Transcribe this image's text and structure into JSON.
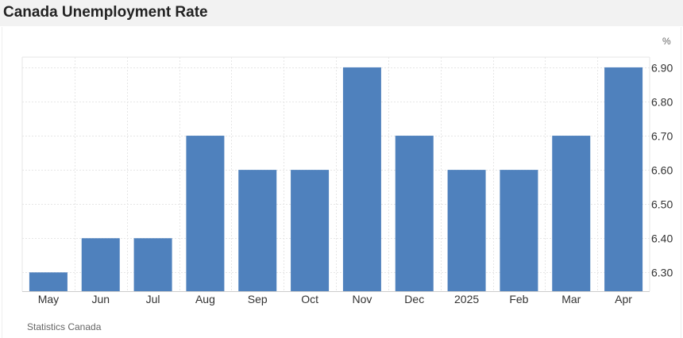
{
  "page": {
    "title": "Canada Unemployment Rate",
    "source": "Statistics Canada"
  },
  "chart_data": {
    "type": "bar",
    "title": "Canada Unemployment Rate",
    "unit": "%",
    "categories": [
      "May",
      "Jun",
      "Jul",
      "Aug",
      "Sep",
      "Oct",
      "Nov",
      "Dec",
      "2025",
      "Feb",
      "Mar",
      "Apr"
    ],
    "values": [
      6.3,
      6.4,
      6.4,
      6.7,
      6.6,
      6.6,
      6.9,
      6.7,
      6.6,
      6.6,
      6.7,
      6.9
    ],
    "ylim": [
      6.245,
      6.93
    ],
    "yticks": [
      "6.30",
      "6.40",
      "6.50",
      "6.60",
      "6.70",
      "6.80",
      "6.90"
    ],
    "ytick_values": [
      6.3,
      6.4,
      6.5,
      6.6,
      6.7,
      6.8,
      6.9
    ],
    "y_axis_side": "right",
    "grid": true,
    "legend": "none",
    "bar_color": "#4f81bd",
    "grid_color": "#e6e6e6",
    "text_color": "#333333"
  }
}
